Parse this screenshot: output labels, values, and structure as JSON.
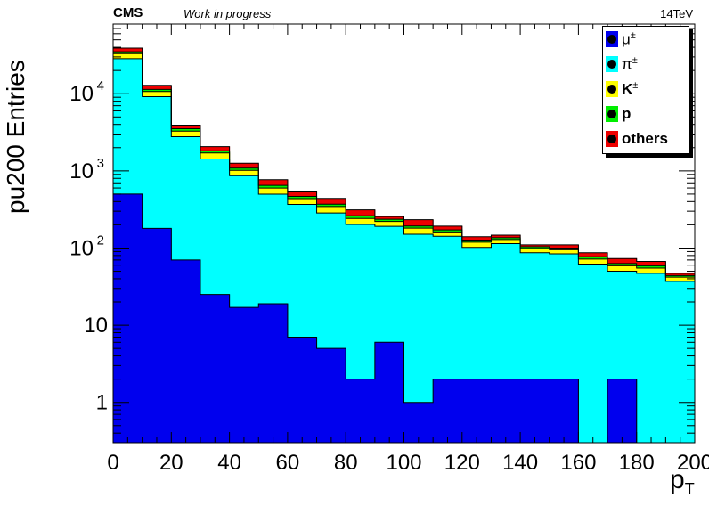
{
  "header": {
    "experiment": "CMS",
    "status": "Work in progress",
    "energy": "14TeV"
  },
  "chart_data": {
    "type": "bar",
    "stacked": true,
    "histogram": true,
    "xlabel_main": "p",
    "xlabel_sub": "T",
    "ylabel": "pu200 Entries",
    "xlim": [
      0,
      200
    ],
    "ylim": [
      0.3,
      80000
    ],
    "yscale": "log",
    "grid": false,
    "legend_position": "top-right",
    "bin_edges": [
      0,
      10,
      20,
      30,
      40,
      50,
      60,
      70,
      80,
      90,
      100,
      110,
      120,
      130,
      140,
      150,
      160,
      170,
      180,
      190,
      200
    ],
    "x_ticks": [
      "0",
      "20",
      "40",
      "60",
      "80",
      "100",
      "120",
      "140",
      "160",
      "180",
      "200"
    ],
    "y_ticks": [
      {
        "value": 1,
        "label": "1"
      },
      {
        "value": 10,
        "label": "10"
      },
      {
        "value": 100,
        "label": "10",
        "exp": "2"
      },
      {
        "value": 1000,
        "label": "10",
        "exp": "3"
      },
      {
        "value": 10000,
        "label": "10",
        "exp": "4"
      }
    ],
    "series": [
      {
        "name": "μ",
        "sup": "±",
        "color": "#0000ee",
        "values": [
          500,
          180,
          70,
          25,
          17,
          19,
          7,
          5,
          2,
          6,
          1,
          2,
          2,
          2,
          2,
          2,
          0,
          2,
          0,
          0
        ]
      },
      {
        "name": "π",
        "sup": "±",
        "color": "#00ffff",
        "values": [
          28000,
          9000,
          2700,
          1400,
          850,
          480,
          360,
          280,
          200,
          185,
          150,
          140,
          100,
          112,
          85,
          82,
          62,
          48,
          47,
          37
        ]
      },
      {
        "name": "K",
        "sup": "±",
        "color": "#ffff00",
        "values": [
          4500,
          1500,
          500,
          280,
          150,
          100,
          70,
          60,
          40,
          30,
          30,
          20,
          17,
          15,
          12,
          11,
          10,
          9,
          8,
          5
        ]
      },
      {
        "name": "p",
        "sup": "",
        "color": "#00ee00",
        "values": [
          2000,
          700,
          250,
          110,
          70,
          50,
          30,
          25,
          20,
          15,
          12,
          10,
          8,
          7,
          5,
          5,
          5,
          4,
          4,
          2
        ]
      },
      {
        "name": "others",
        "sup": "",
        "color": "#ee0000",
        "values": [
          4000,
          1500,
          400,
          250,
          170,
          120,
          80,
          70,
          50,
          20,
          40,
          20,
          13,
          11,
          6,
          10,
          10,
          10,
          8,
          3
        ]
      }
    ]
  }
}
